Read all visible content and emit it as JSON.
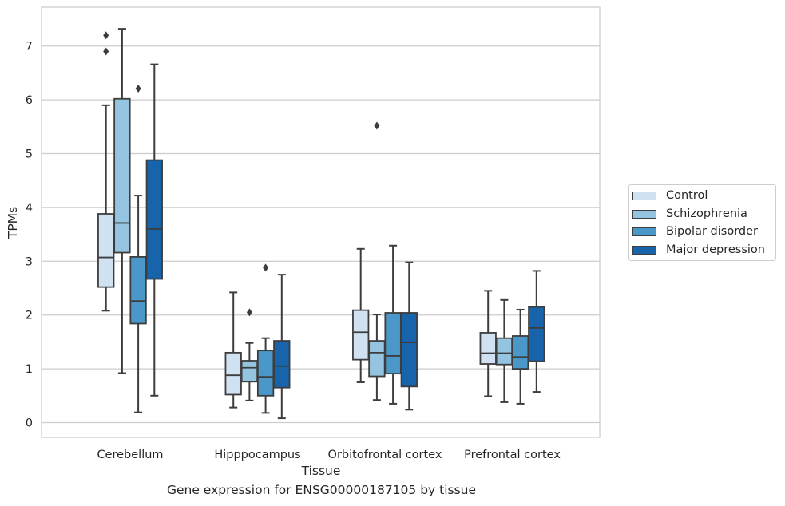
{
  "caption": "Gene expression for ENSG00000187105 by tissue",
  "chart_data": {
    "type": "box",
    "xlabel": "Tissue",
    "ylabel": "TPMs",
    "ylim": [
      -0.3,
      7.65
    ],
    "yticks": [
      0,
      1,
      2,
      3,
      4,
      5,
      6,
      7
    ],
    "grid": true,
    "legend_placement": "center-right (outside)",
    "categories": [
      "Cerebellum",
      "Hipppocampus",
      "Orbitofrontal cortex",
      "Prefrontal cortex"
    ],
    "series": [
      {
        "name": "Control",
        "color": "#d0e1f2",
        "boxes": [
          {
            "whislo": 2.08,
            "q1": 2.52,
            "med": 3.07,
            "q3": 3.88,
            "whishi": 5.9,
            "fliers": [
              6.9,
              7.2
            ]
          },
          {
            "whislo": 0.28,
            "q1": 0.52,
            "med": 0.88,
            "q3": 1.3,
            "whishi": 2.42,
            "fliers": []
          },
          {
            "whislo": 0.75,
            "q1": 1.17,
            "med": 1.68,
            "q3": 2.09,
            "whishi": 3.23,
            "fliers": []
          },
          {
            "whislo": 0.49,
            "q1": 1.09,
            "med": 1.29,
            "q3": 1.67,
            "whishi": 2.45,
            "fliers": []
          }
        ]
      },
      {
        "name": "Schizophrenia",
        "color": "#94c4df",
        "boxes": [
          {
            "whislo": 0.92,
            "q1": 3.16,
            "med": 3.71,
            "q3": 6.02,
            "whishi": 7.32,
            "fliers": []
          },
          {
            "whislo": 0.41,
            "q1": 0.76,
            "med": 1.02,
            "q3": 1.15,
            "whishi": 1.48,
            "fliers": [
              2.05
            ]
          },
          {
            "whislo": 0.42,
            "q1": 0.86,
            "med": 1.3,
            "q3": 1.52,
            "whishi": 2.01,
            "fliers": [
              5.52
            ]
          },
          {
            "whislo": 0.38,
            "q1": 1.08,
            "med": 1.29,
            "q3": 1.57,
            "whishi": 2.28,
            "fliers": []
          }
        ]
      },
      {
        "name": "Bipolar disorder",
        "color": "#4a98c9",
        "boxes": [
          {
            "whislo": 0.19,
            "q1": 1.84,
            "med": 2.26,
            "q3": 3.08,
            "whishi": 4.22,
            "fliers": [
              6.21
            ]
          },
          {
            "whislo": 0.18,
            "q1": 0.5,
            "med": 0.85,
            "q3": 1.34,
            "whishi": 1.57,
            "fliers": [
              2.88
            ]
          },
          {
            "whislo": 0.35,
            "q1": 0.91,
            "med": 1.24,
            "q3": 2.04,
            "whishi": 3.29,
            "fliers": []
          },
          {
            "whislo": 0.35,
            "q1": 1.0,
            "med": 1.22,
            "q3": 1.61,
            "whishi": 2.1,
            "fliers": []
          }
        ]
      },
      {
        "name": "Major depression",
        "color": "#1764ab",
        "boxes": [
          {
            "whislo": 0.5,
            "q1": 2.67,
            "med": 3.6,
            "q3": 4.88,
            "whishi": 6.66,
            "fliers": []
          },
          {
            "whislo": 0.08,
            "q1": 0.65,
            "med": 1.05,
            "q3": 1.52,
            "whishi": 2.75,
            "fliers": []
          },
          {
            "whislo": 0.24,
            "q1": 0.67,
            "med": 1.49,
            "q3": 2.04,
            "whishi": 2.98,
            "fliers": []
          },
          {
            "whislo": 0.57,
            "q1": 1.14,
            "med": 1.76,
            "q3": 2.15,
            "whishi": 2.82,
            "fliers": []
          }
        ]
      }
    ]
  }
}
